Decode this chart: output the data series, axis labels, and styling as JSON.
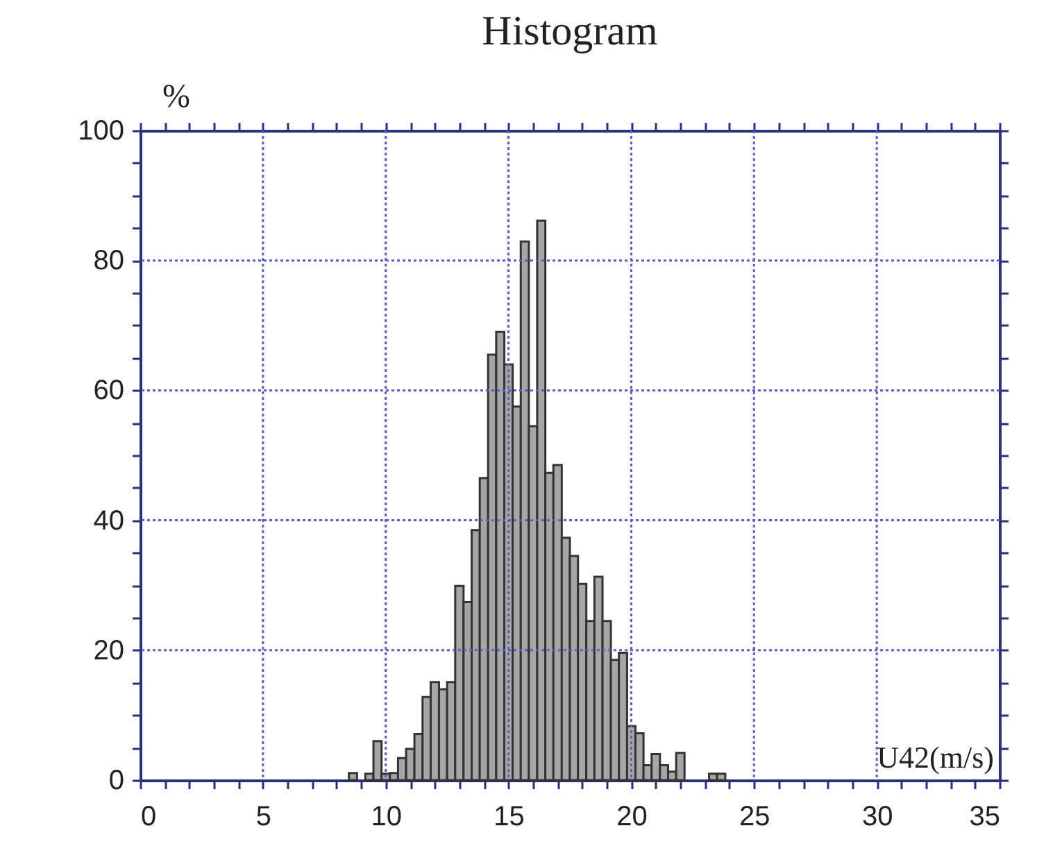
{
  "chart_data": {
    "type": "histogram",
    "title": "Histogram",
    "xlabel": "U42(m/s)",
    "ylabel": "%",
    "bins": [
      8.5,
      8.83,
      9.17,
      9.5,
      9.83,
      10.17,
      10.5,
      10.83,
      11.17,
      11.5,
      11.83,
      12.17,
      12.5,
      12.83,
      13.17,
      13.5,
      13.83,
      14.17,
      14.5,
      14.83,
      15.17,
      15.5,
      15.83,
      16.17,
      16.5,
      16.83,
      17.17,
      17.5,
      17.83,
      18.17,
      18.5,
      18.83,
      19.17,
      19.5,
      19.83,
      20.17,
      20.5,
      20.83,
      21.17,
      21.5,
      21.83,
      22.17,
      22.5,
      22.83,
      23.17,
      23.5,
      23.83
    ],
    "values": [
      1.1,
      0,
      1,
      6,
      1,
      1.1,
      3.4,
      4.8,
      7.1,
      12.8,
      15.1,
      14,
      15.1,
      29.9,
      27.4,
      38.5,
      46.5,
      65.5,
      69,
      64,
      57.5,
      82.9,
      54.5,
      86.1,
      47.3,
      48.5,
      37.3,
      34.5,
      30.2,
      24.5,
      31.3,
      24.5,
      18.5,
      19.6,
      8.3,
      7.2,
      2.3,
      4,
      2.3,
      1.3,
      4.2,
      0,
      0,
      0,
      1,
      1
    ],
    "color": "#a6a6a6",
    "xlim": [
      0,
      35
    ],
    "ylim": [
      0,
      100
    ],
    "xticks": [
      0,
      {
        "value": 1,
        "label": null
      },
      {
        "value": 2,
        "label": null
      },
      {
        "value": 3,
        "label": null
      },
      {
        "value": 4,
        "label": null
      },
      5,
      {
        "value": 6,
        "label": null
      },
      {
        "value": 7,
        "label": null
      },
      {
        "value": 8,
        "label": null
      },
      {
        "value": 9,
        "label": null
      },
      10,
      {
        "value": 11,
        "label": null
      },
      {
        "value": 12,
        "label": null
      },
      {
        "value": 13,
        "label": null
      },
      {
        "value": 14,
        "label": null
      },
      15,
      {
        "value": 16,
        "label": null
      },
      {
        "value": 17,
        "label": null
      },
      {
        "value": 18,
        "label": null
      },
      {
        "value": 19,
        "label": null
      },
      20,
      {
        "value": 21,
        "label": null
      },
      {
        "value": 22,
        "label": null
      },
      {
        "value": 23,
        "label": null
      },
      {
        "value": 24,
        "label": null
      },
      25,
      {
        "value": 26,
        "label": null
      },
      {
        "value": 27,
        "label": null
      },
      {
        "value": 28,
        "label": null
      },
      {
        "value": 29,
        "label": null
      },
      30,
      {
        "value": 31,
        "label": null
      },
      {
        "value": 32,
        "label": null
      },
      {
        "value": 33,
        "label": null
      },
      {
        "value": 34,
        "label": null
      },
      35
    ],
    "yticks": [
      0,
      {
        "value": 5,
        "label": null
      },
      {
        "value": 10,
        "label": null
      },
      {
        "value": 15,
        "label": null
      },
      20,
      {
        "value": 25,
        "label": null
      },
      {
        "value": 30,
        "label": null
      },
      {
        "value": 35,
        "label": null
      },
      40,
      {
        "value": 45,
        "label": null
      },
      {
        "value": 50,
        "label": null
      },
      {
        "value": 55,
        "label": null
      },
      60,
      {
        "value": 65,
        "label": null
      },
      {
        "value": 70,
        "label": null
      },
      {
        "value": 75,
        "label": null
      },
      80,
      {
        "value": 85,
        "label": null
      },
      {
        "value": 90,
        "label": null
      },
      {
        "value": 95,
        "label": null
      },
      100
    ],
    "grid": true
  }
}
